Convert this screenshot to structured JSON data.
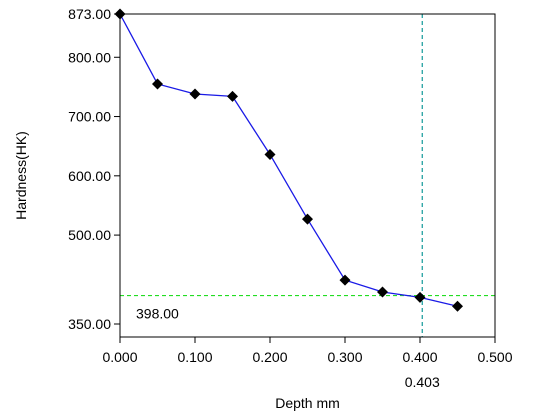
{
  "chart_data": {
    "type": "line",
    "title": "",
    "xlabel": "Depth mm",
    "ylabel": "Hardness(HK)",
    "xlim": [
      0.0,
      0.5
    ],
    "ylim": [
      350.0,
      873.0
    ],
    "x_ticks": [
      {
        "value": 0.0,
        "label": "0.000"
      },
      {
        "value": 0.1,
        "label": "0.100"
      },
      {
        "value": 0.2,
        "label": "0.200"
      },
      {
        "value": 0.3,
        "label": "0.300"
      },
      {
        "value": 0.4,
        "label": "0.400"
      },
      {
        "value": 0.5,
        "label": "0.500"
      }
    ],
    "y_ticks": [
      {
        "value": 350.0,
        "label": "350.00"
      },
      {
        "value": 500.0,
        "label": "500.00"
      },
      {
        "value": 600.0,
        "label": "600.00"
      },
      {
        "value": 700.0,
        "label": "700.00"
      },
      {
        "value": 800.0,
        "label": "800.00"
      },
      {
        "value": 873.0,
        "label": "873.00"
      }
    ],
    "series": [
      {
        "color": "#1a1ae6",
        "marker_color": "#000000",
        "x": [
          0.0,
          0.05,
          0.1,
          0.15,
          0.2,
          0.25,
          0.3,
          0.35,
          0.4,
          0.45
        ],
        "y": [
          873,
          755,
          738,
          734,
          636,
          527,
          424,
          404,
          395,
          380
        ]
      }
    ],
    "reference_lines": [
      {
        "orientation": "horizontal",
        "value": 398.0,
        "label": "398.00",
        "color": "#22dd22"
      },
      {
        "orientation": "vertical",
        "value": 0.403,
        "label": "0.403",
        "color": "#119999"
      }
    ],
    "grid": false,
    "legend": "none"
  }
}
